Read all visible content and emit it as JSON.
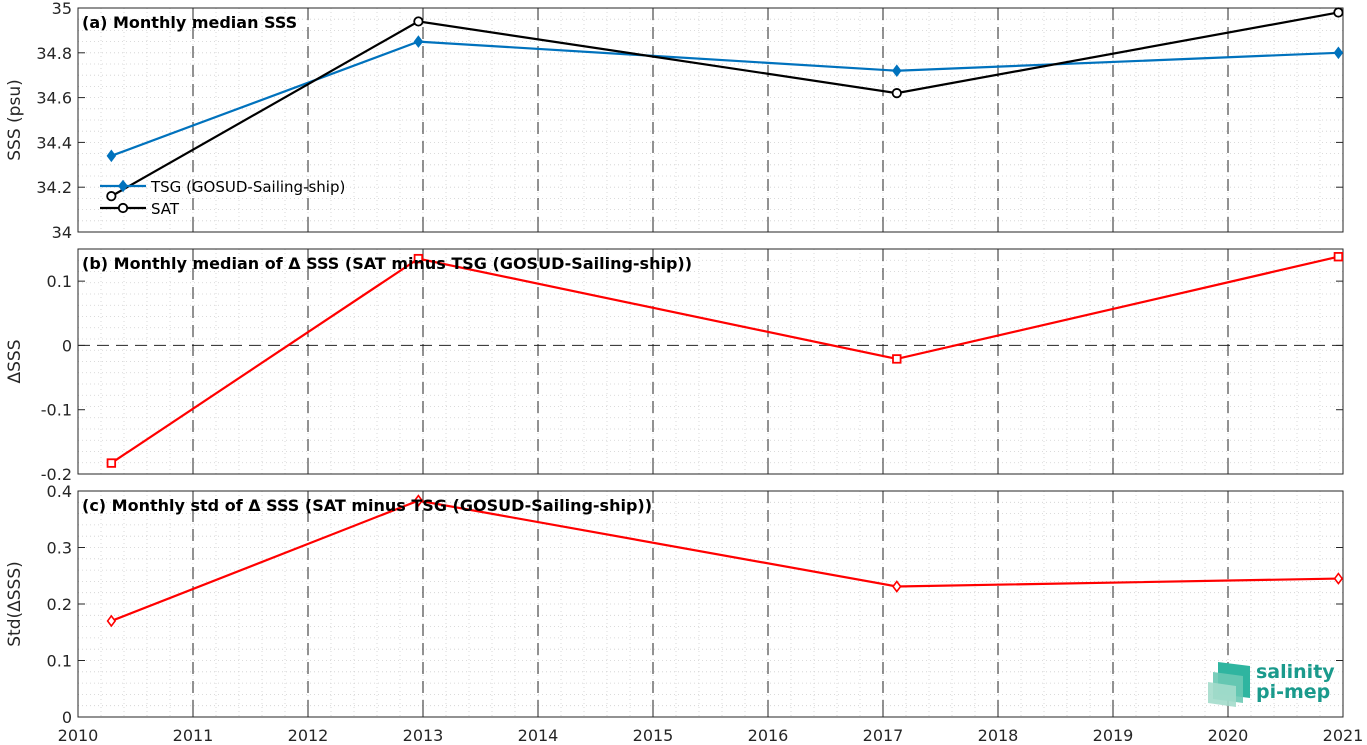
{
  "chart_data": [
    {
      "type": "line",
      "title": "(a) Monthly median SSS",
      "ylabel": "SSS (psu)",
      "xlim": [
        2010,
        2021
      ],
      "ylim": [
        34,
        35
      ],
      "xticks": [
        "2010",
        "2011",
        "2012",
        "2013",
        "2014",
        "2015",
        "2016",
        "2017",
        "2018",
        "2019",
        "2020",
        "2021"
      ],
      "yticks": [
        "34",
        "34.2",
        "34.4",
        "34.6",
        "34.8",
        "35"
      ],
      "grid": true,
      "legend": "bottom-left",
      "series": [
        {
          "name": "TSG (GOSUD-Sailing-ship)",
          "color": "#0072bd",
          "marker": "diamond",
          "x": [
            2010.29,
            2012.96,
            2017.12,
            2020.96
          ],
          "y": [
            34.34,
            34.85,
            34.72,
            34.8
          ]
        },
        {
          "name": "SAT",
          "color": "#000000",
          "marker": "circle",
          "x": [
            2010.29,
            2012.96,
            2017.12,
            2020.96
          ],
          "y": [
            34.16,
            34.94,
            34.62,
            34.98
          ]
        }
      ]
    },
    {
      "type": "line",
      "title": "(b) Monthly median of Δ SSS (SAT minus TSG (GOSUD-Sailing-ship))",
      "ylabel": "ΔSSS",
      "xlim": [
        2010,
        2021
      ],
      "ylim": [
        -0.2,
        0.15
      ],
      "yticks": [
        "-0.2",
        "-0.1",
        "0",
        "0.1"
      ],
      "grid": true,
      "series": [
        {
          "color": "#ff0000",
          "marker": "square",
          "x": [
            2010.29,
            2012.96,
            2017.12,
            2020.96
          ],
          "y": [
            -0.183,
            0.135,
            -0.021,
            0.138
          ]
        }
      ]
    },
    {
      "type": "line",
      "title": "(c) Monthly std of Δ SSS (SAT minus TSG (GOSUD-Sailing-ship))",
      "ylabel": "Std(ΔSSS)",
      "xlim": [
        2010,
        2021
      ],
      "ylim": [
        0,
        0.4
      ],
      "yticks": [
        "0",
        "0.1",
        "0.2",
        "0.3",
        "0.4"
      ],
      "grid": true,
      "series": [
        {
          "color": "#ff0000",
          "marker": "diamond",
          "x": [
            2010.29,
            2012.96,
            2017.12,
            2020.96
          ],
          "y": [
            0.17,
            0.383,
            0.231,
            0.245
          ]
        }
      ]
    }
  ],
  "logo": {
    "line1": "salinity",
    "line2": "pi-mep"
  }
}
